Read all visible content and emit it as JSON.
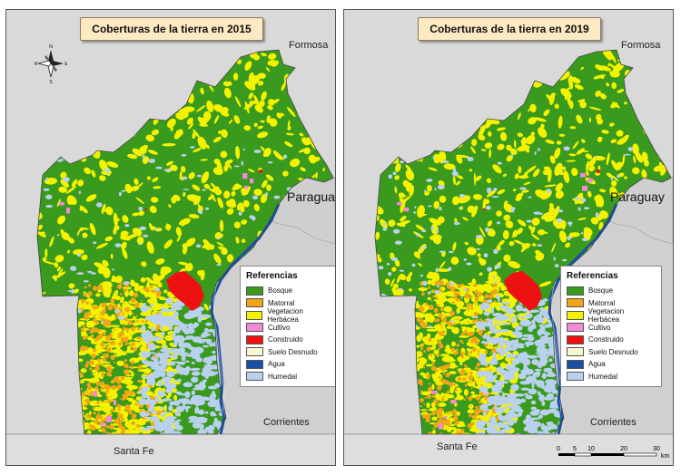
{
  "maps": [
    {
      "title": "Coberturas de la tierra en 2015",
      "places": {
        "formosa": "Formosa",
        "paraguay": "Paraguay",
        "corrientes": "Corrientes",
        "santa_fe": "Santa Fe"
      }
    },
    {
      "title": "Coberturas de la tierra en 2019",
      "places": {
        "formosa": "Formosa",
        "paraguay": "Paraguay",
        "corrientes": "Corrientes",
        "santa_fe": "Santa Fe"
      }
    }
  ],
  "legend": {
    "title": "Referencias",
    "items": [
      {
        "label": "Bosque",
        "color": "#3a9a1e"
      },
      {
        "label": "Matorral",
        "color": "#f2a516"
      },
      {
        "label": "Vegetacion Herbácea",
        "color": "#f5f200"
      },
      {
        "label": "Cultivo",
        "color": "#f28ad8"
      },
      {
        "label": "Construido",
        "color": "#ee1111"
      },
      {
        "label": "Suelo Desnudo",
        "color": "#fbf7cf"
      },
      {
        "label": "Agua",
        "color": "#1a4fa3"
      },
      {
        "label": "Humedal",
        "color": "#b9d1ef"
      }
    ]
  },
  "compass": {
    "n": "N",
    "s": "S",
    "e": "E",
    "w": "W"
  },
  "scale": {
    "ticks": [
      "0",
      "5",
      "10",
      "20",
      "30"
    ],
    "unit": "km"
  },
  "colors": {
    "background": "#d9d9d9",
    "outside_land": "#d0d0d0",
    "border": "#555555"
  }
}
